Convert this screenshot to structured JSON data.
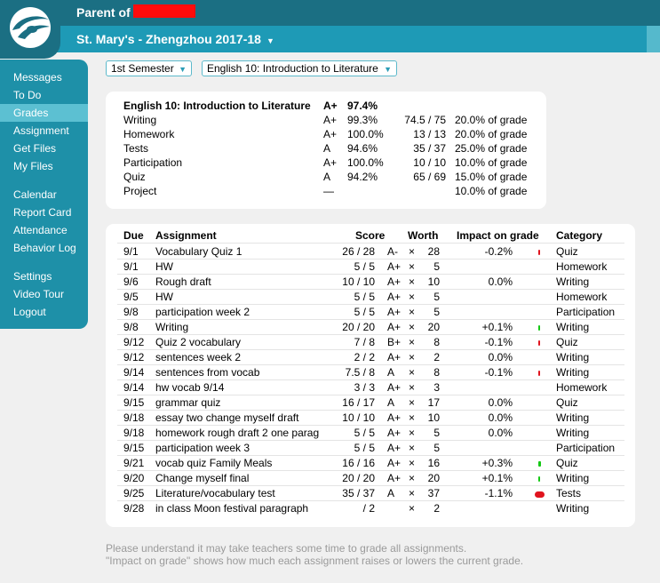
{
  "header": {
    "parent_label": "Parent of",
    "school": "St. Mary's - Zhengzhou  2017-18",
    "school_caret": "▼"
  },
  "colors": {
    "header_dark": "#1b6f83",
    "header_light": "#1e9ab6",
    "sidebar": "#1e90a8",
    "sidebar_active": "#5cc0d2",
    "impact_negative": "#e0141e",
    "impact_positive": "#14c814",
    "redaction": "#ff0c0c"
  },
  "sidebar": {
    "items": [
      {
        "label": "Messages",
        "active": false
      },
      {
        "label": "To Do",
        "active": false
      },
      {
        "label": "Grades",
        "active": true
      },
      {
        "label": "Assignment",
        "active": false
      },
      {
        "label": "Get Files",
        "active": false
      },
      {
        "label": "My Files",
        "active": false
      },
      {
        "label": "Calendar",
        "active": false
      },
      {
        "label": "Report Card",
        "active": false
      },
      {
        "label": "Attendance",
        "active": false
      },
      {
        "label": "Behavior Log",
        "active": false
      },
      {
        "label": "Settings",
        "active": false
      },
      {
        "label": "Video Tour",
        "active": false
      },
      {
        "label": "Logout",
        "active": false
      }
    ]
  },
  "filters": {
    "semester": "1st Semester",
    "course": "English 10: Introduction to Literature",
    "caret": "▼"
  },
  "summary": {
    "course": "English 10: Introduction to Literature",
    "grade": "A+",
    "percent": "97.4%",
    "rows": [
      {
        "name": "Writing",
        "grade": "A+",
        "percent": "99.3%",
        "points": "74.5 / 75",
        "weight": "20.0% of grade"
      },
      {
        "name": "Homework",
        "grade": "A+",
        "percent": "100.0%",
        "points": "13 / 13",
        "weight": "20.0% of grade"
      },
      {
        "name": "Tests",
        "grade": "A",
        "percent": "94.6%",
        "points": "35 / 37",
        "weight": "25.0% of grade"
      },
      {
        "name": "Participation",
        "grade": "A+",
        "percent": "100.0%",
        "points": "10 / 10",
        "weight": "10.0% of grade"
      },
      {
        "name": "Quiz",
        "grade": "A",
        "percent": "94.2%",
        "points": "65 / 69",
        "weight": "15.0% of grade"
      },
      {
        "name": "Project",
        "grade": "—",
        "percent": "",
        "points": "",
        "weight": "10.0% of grade"
      }
    ]
  },
  "assignments": {
    "headers": {
      "due": "Due",
      "assignment": "Assignment",
      "score": "Score",
      "worth": "Worth",
      "impact": "Impact on grade",
      "category": "Category"
    },
    "rows": [
      {
        "due": "9/1",
        "name": "Vocabulary Quiz 1",
        "score": "26 / 28",
        "letter": "A-",
        "x": "×",
        "worth": "28",
        "impact": "-0.2%",
        "impact_value": -0.2,
        "category": "Quiz"
      },
      {
        "due": "9/1",
        "name": "HW",
        "score": "5 / 5",
        "letter": "A+",
        "x": "×",
        "worth": "5",
        "impact": "",
        "impact_value": 0,
        "category": "Homework"
      },
      {
        "due": "9/6",
        "name": "Rough draft",
        "score": "10 / 10",
        "letter": "A+",
        "x": "×",
        "worth": "10",
        "impact": "0.0%",
        "impact_value": 0,
        "category": "Writing"
      },
      {
        "due": "9/5",
        "name": "HW",
        "score": "5 / 5",
        "letter": "A+",
        "x": "×",
        "worth": "5",
        "impact": "",
        "impact_value": 0,
        "category": "Homework"
      },
      {
        "due": "9/8",
        "name": "participation week 2",
        "score": "5 / 5",
        "letter": "A+",
        "x": "×",
        "worth": "5",
        "impact": "",
        "impact_value": 0,
        "category": "Participation"
      },
      {
        "due": "9/8",
        "name": "Writing",
        "score": "20 / 20",
        "letter": "A+",
        "x": "×",
        "worth": "20",
        "impact": "+0.1%",
        "impact_value": 0.1,
        "category": "Writing"
      },
      {
        "due": "9/12",
        "name": "Quiz 2 vocabulary",
        "score": "7 / 8",
        "letter": "B+",
        "x": "×",
        "worth": "8",
        "impact": "-0.1%",
        "impact_value": -0.1,
        "category": "Quiz"
      },
      {
        "due": "9/12",
        "name": "sentences week 2",
        "score": "2 / 2",
        "letter": "A+",
        "x": "×",
        "worth": "2",
        "impact": "0.0%",
        "impact_value": 0,
        "category": "Writing"
      },
      {
        "due": "9/14",
        "name": "sentences from vocab",
        "score": "7.5 / 8",
        "letter": "A",
        "x": "×",
        "worth": "8",
        "impact": "-0.1%",
        "impact_value": -0.1,
        "category": "Writing"
      },
      {
        "due": "9/14",
        "name": "hw vocab 9/14",
        "score": "3 / 3",
        "letter": "A+",
        "x": "×",
        "worth": "3",
        "impact": "",
        "impact_value": 0,
        "category": "Homework"
      },
      {
        "due": "9/15",
        "name": "grammar quiz",
        "score": "16 / 17",
        "letter": "A",
        "x": "×",
        "worth": "17",
        "impact": "0.0%",
        "impact_value": 0,
        "category": "Quiz"
      },
      {
        "due": "9/18",
        "name": "essay two change myself draft",
        "score": "10 / 10",
        "letter": "A+",
        "x": "×",
        "worth": "10",
        "impact": "0.0%",
        "impact_value": 0,
        "category": "Writing"
      },
      {
        "due": "9/18",
        "name": "homework rough draft 2 one parag",
        "score": "5 / 5",
        "letter": "A+",
        "x": "×",
        "worth": "5",
        "impact": "0.0%",
        "impact_value": 0,
        "category": "Writing"
      },
      {
        "due": "9/15",
        "name": "participation week 3",
        "score": "5 / 5",
        "letter": "A+",
        "x": "×",
        "worth": "5",
        "impact": "",
        "impact_value": 0,
        "category": "Participation"
      },
      {
        "due": "9/21",
        "name": "vocab quiz Family Meals",
        "score": "16 / 16",
        "letter": "A+",
        "x": "×",
        "worth": "16",
        "impact": "+0.3%",
        "impact_value": 0.3,
        "category": "Quiz"
      },
      {
        "due": "9/20",
        "name": "Change myself final",
        "score": "20 / 20",
        "letter": "A+",
        "x": "×",
        "worth": "20",
        "impact": "+0.1%",
        "impact_value": 0.1,
        "category": "Writing"
      },
      {
        "due": "9/25",
        "name": "Literature/vocabulary test",
        "score": "35 / 37",
        "letter": "A",
        "x": "×",
        "worth": "37",
        "impact": "-1.1%",
        "impact_value": -1.1,
        "category": "Tests"
      },
      {
        "due": "9/28",
        "name": "in class Moon festival paragraph",
        "score": " / 2",
        "letter": "",
        "x": "×",
        "worth": "2",
        "impact": "",
        "impact_value": 0,
        "category": "Writing"
      }
    ]
  },
  "footer": {
    "line1": "Please understand it may take teachers some time to grade all assignments.",
    "line2": "\"Impact on grade\" shows how much each assignment raises or lowers the current grade."
  }
}
